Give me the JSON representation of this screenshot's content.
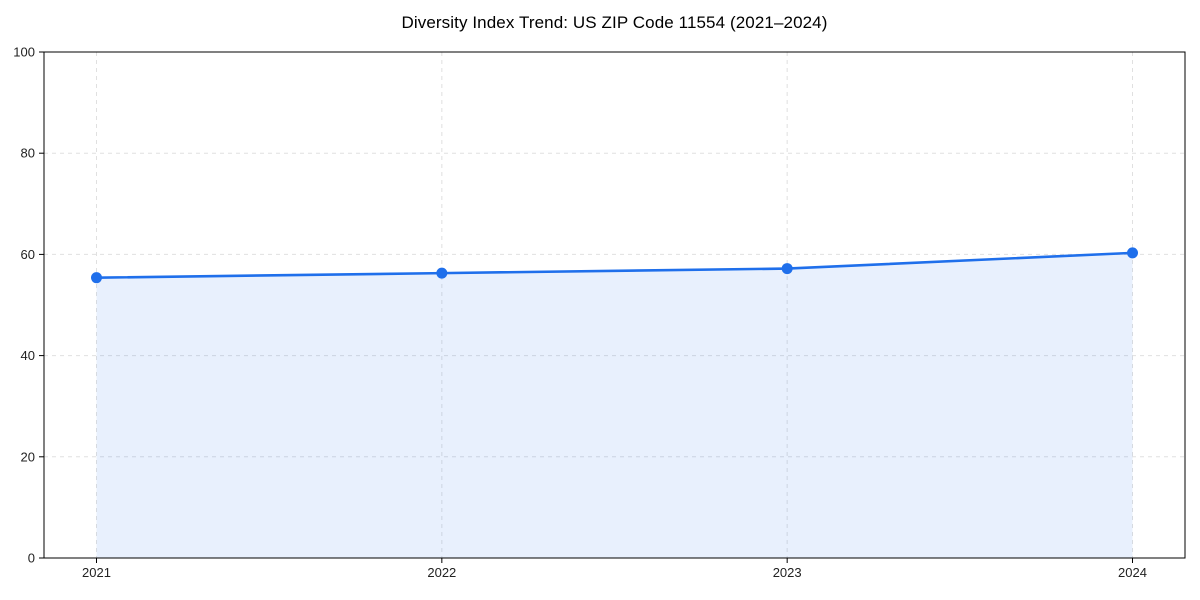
{
  "chart_data": {
    "type": "line",
    "title": "Diversity Index Trend: US ZIP Code 11554 (2021–2024)",
    "xlabel": "",
    "ylabel": "",
    "categories": [
      "2021",
      "2022",
      "2023",
      "2024"
    ],
    "series": [
      {
        "name": "Diversity Index",
        "values": [
          55.4,
          56.3,
          57.2,
          60.3
        ]
      }
    ],
    "ylim": [
      0,
      100
    ],
    "yticks": [
      0,
      20,
      40,
      60,
      80,
      100
    ],
    "grid": true,
    "grid_style": "dashed",
    "legend": false,
    "line_color": "#1f6feb",
    "marker": "circle",
    "fill_color": "#1f6feb",
    "fill_opacity": 0.1,
    "grid_color": "#e0e0e0",
    "axis_color": "#000000",
    "tick_label_color": "#222222",
    "background_color": "#ffffff"
  }
}
